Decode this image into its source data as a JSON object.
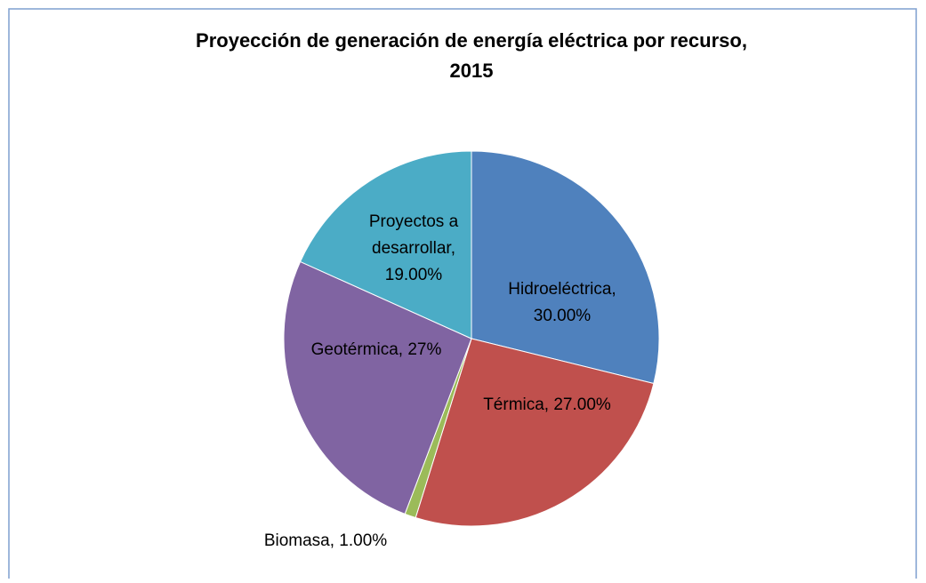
{
  "chart_data": {
    "type": "pie",
    "title": "Proyección de generación de energía eléctrica por recurso, 2015",
    "values": [
      30,
      27,
      1,
      27,
      19
    ],
    "value_labels": [
      "Hidroeléctrica, 30.00%",
      "Térmica, 27.00%",
      "Biomasa, 1.00%",
      "Geotérmica, 27%",
      "Proyectos a desarrollar, 19.00%"
    ],
    "colors": [
      "#4f81bd",
      "#c0504d",
      "#9bbb59",
      "#8064a2",
      "#4bacc6"
    ]
  }
}
